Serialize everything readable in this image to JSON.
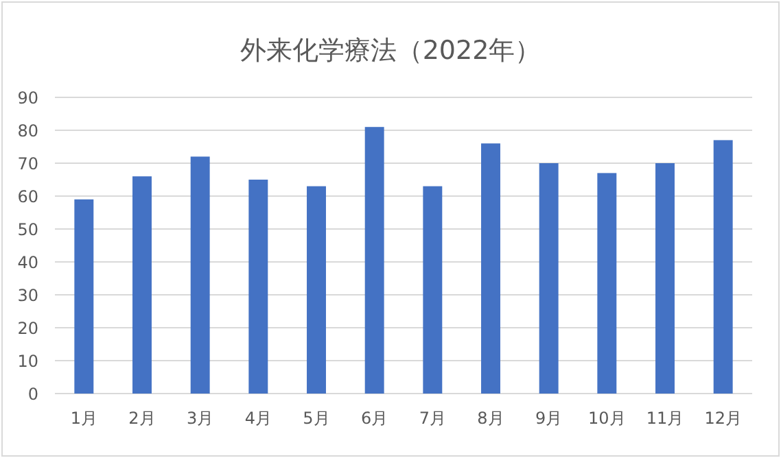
{
  "chart_data": {
    "type": "bar",
    "title": "外来化学療法（2022年）",
    "categories": [
      "1月",
      "2月",
      "3月",
      "4月",
      "5月",
      "6月",
      "7月",
      "8月",
      "9月",
      "10月",
      "11月",
      "12月"
    ],
    "values": [
      59,
      66,
      72,
      65,
      63,
      81,
      63,
      76,
      70,
      67,
      70,
      77
    ],
    "color": "#4472c4",
    "ylim": [
      0,
      90
    ],
    "yticks": [
      0,
      10,
      20,
      30,
      40,
      50,
      60,
      70,
      80,
      90
    ],
    "grid": "y"
  }
}
